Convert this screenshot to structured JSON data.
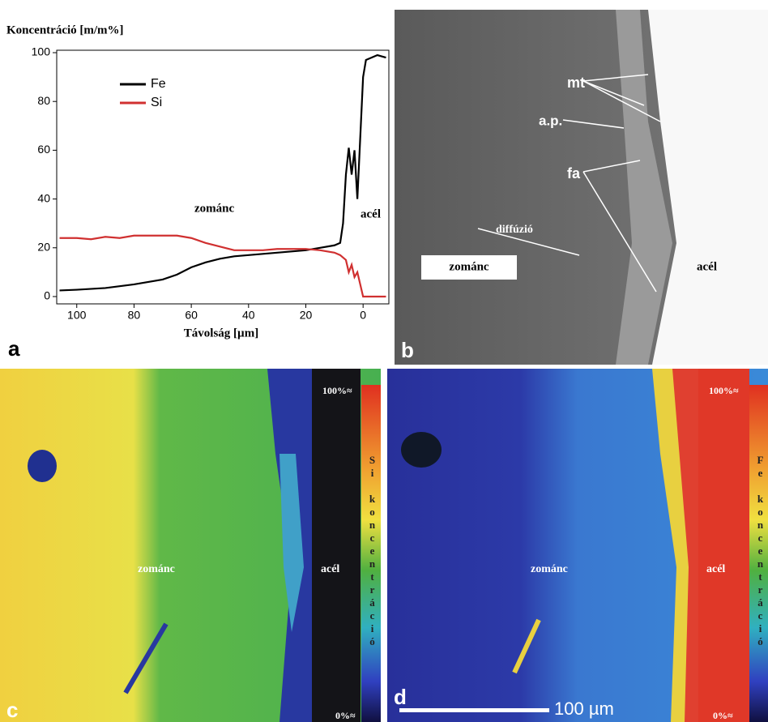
{
  "chart_data": {
    "type": "line",
    "title": "Koncentráció [m/m%]",
    "xlabel": "Távolság [µm]",
    "panel_label": "a",
    "annotations": [
      "zománc",
      "acél"
    ],
    "xlim": [
      107,
      -9
    ],
    "ylim": [
      -3,
      101
    ],
    "xticks": [
      100,
      80,
      60,
      40,
      20,
      0
    ],
    "yticks": [
      0,
      20,
      40,
      60,
      80,
      100
    ],
    "grid": false,
    "legend": "upper left",
    "series": [
      {
        "name": "Fe",
        "color": "#000000",
        "x": [
          106,
          100,
          90,
          80,
          70,
          65,
          60,
          55,
          50,
          45,
          40,
          35,
          30,
          25,
          20,
          15,
          10,
          8,
          7,
          6,
          5,
          4,
          3,
          2,
          1,
          0,
          -1,
          -3,
          -5,
          -8
        ],
        "values": [
          2.5,
          2.8,
          3.5,
          5,
          7,
          9,
          12,
          14,
          15.5,
          16.5,
          17,
          17.5,
          18,
          18.5,
          19,
          20,
          21,
          22,
          30,
          50,
          61,
          50,
          60,
          40,
          65,
          90,
          97,
          98,
          99,
          98
        ]
      },
      {
        "name": "Si",
        "color": "#d03030",
        "x": [
          106,
          100,
          95,
          90,
          85,
          80,
          70,
          65,
          60,
          55,
          50,
          45,
          40,
          35,
          30,
          25,
          20,
          15,
          10,
          8,
          6,
          5,
          4,
          3,
          2,
          1,
          0,
          -3,
          -8
        ],
        "values": [
          24,
          24,
          23.5,
          24.5,
          24,
          25,
          25,
          25,
          24,
          22,
          20.5,
          19,
          19,
          19,
          19.5,
          19.5,
          19.5,
          19,
          18,
          17,
          15,
          10,
          13,
          8,
          10,
          5,
          0,
          0,
          0
        ]
      }
    ]
  },
  "panel_b": {
    "labels": [
      "mt",
      "a.p.",
      "fa"
    ],
    "arrow_text": "diffúzió",
    "left": "zománc",
    "right": "acél",
    "panel_label": "b"
  },
  "panel_c": {
    "top": "100%≈",
    "bottom": "0%≈",
    "colorbar_label": "Si koncentráció",
    "left": "zománc",
    "right": "acél",
    "panel_label": "c"
  },
  "panel_d": {
    "top": "100%≈",
    "bottom": "0%≈",
    "colorbar_label": "Fe koncentráció",
    "left": "zománc",
    "right": "acél",
    "scale": "100 µm",
    "panel_label": "d"
  }
}
